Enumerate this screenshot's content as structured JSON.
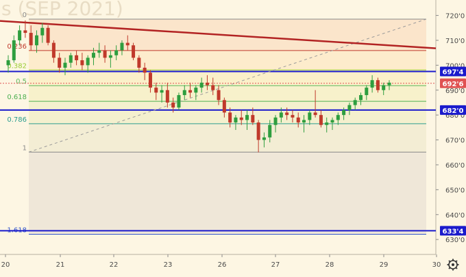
{
  "chart_data": {
    "type": "candlestick",
    "watermark": "s (SEP 2021)",
    "y_axis": {
      "ticks": [
        "720'0",
        "710'0",
        "700'0",
        "690'0",
        "680'0",
        "670'0",
        "660'0",
        "650'0",
        "640'0",
        "630'0"
      ],
      "tick_values": [
        720,
        710,
        700,
        690,
        680,
        670,
        660,
        650,
        640,
        630
      ],
      "ylim": [
        624,
        724
      ]
    },
    "x_axis": {
      "ticks": [
        "20",
        "21",
        "22",
        "23",
        "26",
        "27",
        "28",
        "29",
        "30"
      ]
    },
    "fibonacci": [
      {
        "label": "0",
        "value": 718.5,
        "color": "#888888"
      },
      {
        "label": "0.236",
        "value": 705.9,
        "color": "#c0392b"
      },
      {
        "label": "0.382",
        "value": 698.1,
        "color": "#9acd32"
      },
      {
        "label": "0.5",
        "value": 691.8,
        "color": "#5cb85c"
      },
      {
        "label": "0.618",
        "value": 685.5,
        "color": "#4caf50"
      },
      {
        "label": "0.786",
        "value": 676.5,
        "color": "#2a9d8f"
      },
      {
        "label": "1",
        "value": 665.1,
        "color": "#888888"
      },
      {
        "label": "1.618",
        "value": 632.1,
        "color": "#3355cc"
      }
    ],
    "horizontal_levels": [
      {
        "label": "697'4",
        "value": 697.5,
        "color": "#1a1acc"
      },
      {
        "label": "682'0",
        "value": 682.0,
        "color": "#1a1acc"
      },
      {
        "label": "633'4",
        "value": 633.5,
        "color": "#1a1acc"
      }
    ],
    "last_price": {
      "label": "692'6",
      "value": 692.75,
      "color": "#e05252"
    },
    "trend_line": {
      "label": "",
      "start": {
        "x_index": 0,
        "value": 717.8
      },
      "end": {
        "x_index": 80,
        "value": 706.8
      },
      "color": "#b22222"
    },
    "diagonal": {
      "start": {
        "x_index": 4,
        "value": 665.1
      },
      "end": {
        "x_index": 78,
        "value": 718.5
      }
    },
    "series": [
      {
        "name": "",
        "x_start_tick": 0,
        "candles": [
          [
            700,
            704,
            697,
            702
          ],
          [
            702,
            712,
            701,
            710
          ],
          [
            710,
            716,
            708,
            714
          ],
          [
            714,
            718,
            711,
            713
          ],
          [
            713,
            716,
            706,
            708
          ],
          [
            708,
            714,
            705,
            712
          ],
          [
            712,
            717,
            709,
            715
          ],
          [
            715,
            716,
            708,
            709
          ],
          [
            709,
            710,
            701,
            703
          ],
          [
            703,
            705,
            697,
            699
          ],
          [
            699,
            703,
            696,
            701
          ],
          [
            701,
            705,
            699,
            704
          ],
          [
            704,
            706,
            700,
            702
          ],
          [
            702,
            705,
            698,
            700
          ],
          [
            700,
            704,
            697,
            703
          ],
          [
            703,
            707,
            700,
            705
          ],
          [
            705,
            709,
            703,
            706
          ],
          [
            706,
            708,
            701,
            703
          ],
          [
            703,
            706,
            699,
            704
          ],
          [
            704,
            708,
            702,
            706
          ],
          [
            706,
            710,
            704,
            709
          ],
          [
            709,
            712,
            706,
            708
          ],
          [
            708,
            709,
            702,
            703
          ],
          [
            703,
            704,
            697,
            699
          ],
          [
            699,
            701,
            694,
            697
          ],
          [
            697,
            698,
            689,
            691
          ],
          [
            691,
            693,
            686,
            689
          ],
          [
            689,
            692,
            685,
            690
          ],
          [
            690,
            693,
            683,
            685
          ],
          [
            685,
            687,
            681,
            683
          ],
          [
            683,
            689,
            682,
            688
          ],
          [
            688,
            692,
            686,
            690
          ],
          [
            690,
            693,
            687,
            689
          ],
          [
            689,
            692,
            686,
            691
          ],
          [
            691,
            695,
            689,
            693
          ],
          [
            693,
            696,
            690,
            692
          ],
          [
            692,
            695,
            688,
            690
          ],
          [
            690,
            692,
            684,
            686
          ],
          [
            686,
            687,
            679,
            681
          ],
          [
            681,
            683,
            675,
            677
          ],
          [
            677,
            680,
            674,
            679
          ],
          [
            679,
            682,
            676,
            678
          ],
          [
            678,
            682,
            674,
            680
          ],
          [
            680,
            683,
            676,
            677
          ],
          [
            677,
            678,
            665,
            670
          ],
          [
            670,
            673,
            667,
            671
          ],
          [
            671,
            678,
            669,
            676
          ],
          [
            676,
            680,
            673,
            679
          ],
          [
            679,
            683,
            677,
            681
          ],
          [
            681,
            683,
            678,
            680
          ],
          [
            680,
            682,
            677,
            679
          ],
          [
            679,
            681,
            675,
            677
          ],
          [
            677,
            680,
            673,
            678
          ],
          [
            678,
            682,
            676,
            681
          ],
          [
            681,
            690,
            679,
            680
          ],
          [
            680,
            682,
            675,
            676
          ],
          [
            676,
            679,
            673,
            677
          ],
          [
            677,
            679,
            674,
            678
          ],
          [
            678,
            681,
            676,
            680
          ],
          [
            680,
            683,
            678,
            682
          ],
          [
            682,
            685,
            680,
            684
          ],
          [
            684,
            687,
            682,
            686
          ],
          [
            686,
            689,
            684,
            688
          ],
          [
            688,
            692,
            686,
            691
          ],
          [
            691,
            696,
            689,
            694
          ],
          [
            694,
            695,
            689,
            690
          ],
          [
            690,
            693,
            688,
            692
          ],
          [
            692,
            694,
            690,
            693
          ]
        ]
      }
    ]
  }
}
